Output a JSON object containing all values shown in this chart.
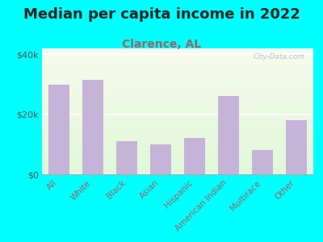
{
  "title": "Median per capita income in 2022",
  "subtitle": "Clarence, AL",
  "categories": [
    "All",
    "White",
    "Black",
    "Asian",
    "Hispanic",
    "American Indian",
    "Multirace",
    "Other"
  ],
  "values": [
    30000,
    31500,
    11000,
    10000,
    12000,
    26000,
    8000,
    18000
  ],
  "bar_color": "#c5b4d8",
  "background_outer": "#00ffff",
  "title_color": "#222222",
  "subtitle_color": "#996666",
  "tick_label_color": "#996666",
  "ytick_label_color": "#555555",
  "ylim": [
    0,
    42000
  ],
  "yticks": [
    0,
    20000,
    40000
  ],
  "ytick_labels": [
    "$0",
    "$20k",
    "$40k"
  ],
  "watermark": "City-Data.com",
  "title_fontsize": 13,
  "subtitle_fontsize": 10,
  "tick_fontsize": 7.5,
  "ytick_fontsize": 8
}
